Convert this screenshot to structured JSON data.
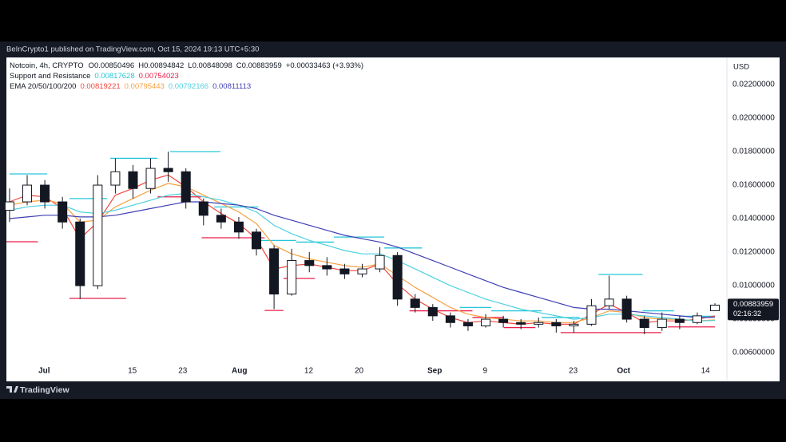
{
  "published": "BeInCrypto1 published on TradingView.com, Oct 15, 2024 19:13 UTC+5:30",
  "footer": "TradingView",
  "chart_data": {
    "type": "candlestick",
    "symbol": "Notcoin, 4h, CRYPTO",
    "ohlc_labels": [
      "O",
      "H",
      "L",
      "C"
    ],
    "change": "+0.00033463 (+3.93%)",
    "currency": "USD",
    "countdown": "02:16:32",
    "up_color": "#ffffff",
    "down_color": "#131722",
    "x": [
      177.5,
      180.3,
      183.1,
      185.9,
      188.7,
      191.5,
      194.3,
      197.1,
      199.9,
      202.7,
      205.5,
      208.3,
      211.1,
      213.9,
      216.7,
      219.5,
      222.3,
      225.1,
      227.9,
      230.7,
      233.5,
      236.3,
      239.1,
      241.9,
      244.7,
      247.5,
      250.3,
      253.1,
      255.9,
      258.7,
      261.5,
      264.3,
      267.1,
      269.9,
      272.7,
      275.5,
      278.3,
      281.1,
      283.9,
      286.7,
      289.5
    ],
    "open": [
      0.0145,
      0.015,
      0.016,
      0.015,
      0.0138,
      0.01,
      0.016,
      0.0168,
      0.0158,
      0.017,
      0.0168,
      0.015,
      0.0142,
      0.0138,
      0.0132,
      0.0122,
      0.0095,
      0.0115,
      0.0112,
      0.011,
      0.0107,
      0.011,
      0.0118,
      0.0092,
      0.0087,
      0.0082,
      0.0078,
      0.0076,
      0.008,
      0.0078,
      0.0077,
      0.0078,
      0.0076,
      0.0077,
      0.0088,
      0.0092,
      0.008,
      0.0075,
      0.008,
      0.0078,
      0.00850496
    ],
    "high": [
      0.0158,
      0.0166,
      0.0163,
      0.0153,
      0.014,
      0.0166,
      0.0176,
      0.0172,
      0.0176,
      0.018,
      0.017,
      0.0152,
      0.0146,
      0.0141,
      0.0134,
      0.0124,
      0.0122,
      0.012,
      0.0117,
      0.0113,
      0.0113,
      0.0123,
      0.012,
      0.0095,
      0.0089,
      0.0084,
      0.008,
      0.0083,
      0.0082,
      0.008,
      0.0081,
      0.008,
      0.0079,
      0.0092,
      0.0106,
      0.0094,
      0.0082,
      0.0084,
      0.0082,
      0.0084,
      0.00894842
    ],
    "low": [
      0.0138,
      0.0148,
      0.0146,
      0.0134,
      0.0092,
      0.0098,
      0.0155,
      0.0152,
      0.0155,
      0.0162,
      0.0146,
      0.0136,
      0.0134,
      0.0128,
      0.0118,
      0.0086,
      0.0094,
      0.0108,
      0.0106,
      0.0104,
      0.0105,
      0.0108,
      0.0088,
      0.0084,
      0.0079,
      0.0075,
      0.0073,
      0.0075,
      0.0075,
      0.0074,
      0.0075,
      0.0072,
      0.0072,
      0.0076,
      0.0086,
      0.0078,
      0.0071,
      0.0073,
      0.0074,
      0.0077,
      0.00848098
    ],
    "close": [
      0.015,
      0.016,
      0.015,
      0.0138,
      0.01,
      0.016,
      0.0168,
      0.0158,
      0.017,
      0.0168,
      0.015,
      0.0142,
      0.0138,
      0.0132,
      0.0122,
      0.0095,
      0.0115,
      0.0112,
      0.011,
      0.0107,
      0.011,
      0.0118,
      0.0092,
      0.0087,
      0.0082,
      0.0078,
      0.0076,
      0.008,
      0.0078,
      0.0077,
      0.0078,
      0.0076,
      0.0077,
      0.0088,
      0.0092,
      0.008,
      0.0075,
      0.008,
      0.0078,
      0.0082,
      0.00883959
    ],
    "sr": {
      "label": "Support and Resistance",
      "resistance": {
        "color": "#26c6da",
        "segments": [
          {
            "x": [
              177.5,
              183.5
            ],
            "value": 0.01667
          },
          {
            "x": [
              187,
              193
            ],
            "value": 0.0152
          },
          {
            "x": [
              193.5,
              201
            ],
            "value": 0.0176
          },
          {
            "x": [
              203,
              211
            ],
            "value": 0.018
          },
          {
            "x": [
              210,
              217
            ],
            "value": 0.0147
          },
          {
            "x": [
              217,
              223
            ],
            "value": 0.0127
          },
          {
            "x": [
              223,
              229
            ],
            "value": 0.0126
          },
          {
            "x": [
              229,
              237
            ],
            "value": 0.0129
          },
          {
            "x": [
              237,
              243
            ],
            "value": 0.01225
          },
          {
            "x": [
              249,
              254
            ],
            "value": 0.0087
          },
          {
            "x": [
              254,
              262
            ],
            "value": 0.0085
          },
          {
            "x": [
              262,
              268
            ],
            "value": 0.0081
          },
          {
            "x": [
              271,
              278
            ],
            "value": 0.01067
          },
          {
            "x": [
              278,
              283
            ],
            "value": 0.0085
          },
          {
            "x": [
              284,
              289.5
            ],
            "value": 0.00817628
          }
        ]
      },
      "support": {
        "color": "#e91e4a",
        "segments": [
          {
            "x": [
              177,
              182
            ],
            "value": 0.01262
          },
          {
            "x": [
              187,
              196
            ],
            "value": 0.00924
          },
          {
            "x": [
              201,
              208
            ],
            "value": 0.0153
          },
          {
            "x": [
              208,
              218
            ],
            "value": 0.01286
          },
          {
            "x": [
              218,
              221
            ],
            "value": 0.00852
          },
          {
            "x": [
              221,
              226
            ],
            "value": 0.01043
          },
          {
            "x": [
              241,
              251
            ],
            "value": 0.0085
          },
          {
            "x": [
              251,
              256
            ],
            "value": 0.0081
          },
          {
            "x": [
              256,
              261
            ],
            "value": 0.0075
          },
          {
            "x": [
              265,
              271
            ],
            "value": 0.0072
          },
          {
            "x": [
              271,
              281
            ],
            "value": 0.0072
          },
          {
            "x": [
              282,
              289.5
            ],
            "value": 0.00754023
          }
        ]
      }
    },
    "ema": {
      "label": "EMA 20/50/100/200",
      "series": [
        {
          "color": "#f0463c",
          "values": [
            0.015,
            0.0154,
            0.0153,
            0.0146,
            0.0128,
            0.0138,
            0.0154,
            0.0158,
            0.0163,
            0.0166,
            0.0159,
            0.015,
            0.0143,
            0.0137,
            0.0128,
            0.011,
            0.0112,
            0.0113,
            0.0111,
            0.0109,
            0.0109,
            0.0113,
            0.0101,
            0.0092,
            0.0086,
            0.0081,
            0.0078,
            0.0079,
            0.0078,
            0.0077,
            0.0078,
            0.0077,
            0.0077,
            0.0083,
            0.0089,
            0.0084,
            0.0078,
            0.0079,
            0.0079,
            0.008,
            0.00819221
          ]
        },
        {
          "color": "#f5a142",
          "values": [
            0.0148,
            0.015,
            0.0151,
            0.0149,
            0.0138,
            0.0139,
            0.0147,
            0.0152,
            0.0157,
            0.0161,
            0.0159,
            0.0154,
            0.0149,
            0.0144,
            0.0137,
            0.0124,
            0.0119,
            0.0116,
            0.0114,
            0.0112,
            0.0111,
            0.0113,
            0.0106,
            0.0099,
            0.0093,
            0.0087,
            0.0083,
            0.0081,
            0.008,
            0.0079,
            0.0079,
            0.0078,
            0.0078,
            0.0081,
            0.0085,
            0.0084,
            0.0081,
            0.008,
            0.008,
            0.0079,
            0.00795443
          ]
        },
        {
          "color": "#4dd0e1",
          "values": [
            0.0145,
            0.0147,
            0.0148,
            0.0148,
            0.0144,
            0.0143,
            0.0145,
            0.0148,
            0.0151,
            0.0154,
            0.0155,
            0.0153,
            0.0151,
            0.0148,
            0.0144,
            0.0136,
            0.0131,
            0.0127,
            0.0124,
            0.0121,
            0.0119,
            0.0119,
            0.0115,
            0.011,
            0.0105,
            0.01,
            0.0096,
            0.0092,
            0.0089,
            0.0086,
            0.0084,
            0.0082,
            0.008,
            0.0081,
            0.0083,
            0.0083,
            0.0082,
            0.0081,
            0.008,
            0.0079,
            0.00792166
          ]
        },
        {
          "color": "#3f3fb5",
          "values": [
            0.014,
            0.0141,
            0.0142,
            0.0142,
            0.0141,
            0.0141,
            0.0142,
            0.0144,
            0.0146,
            0.0148,
            0.015,
            0.015,
            0.0149,
            0.0148,
            0.0146,
            0.0142,
            0.0139,
            0.0136,
            0.0133,
            0.013,
            0.0128,
            0.0126,
            0.0123,
            0.0119,
            0.0115,
            0.0111,
            0.0107,
            0.0103,
            0.0099,
            0.0096,
            0.0093,
            0.009,
            0.0087,
            0.0086,
            0.0086,
            0.0085,
            0.0084,
            0.0083,
            0.0082,
            0.0081,
            0.00811113
          ]
        }
      ]
    },
    "xlim": [
      177,
      291.4
    ],
    "xticks": [
      {
        "value": 183,
        "label": "Jul"
      },
      {
        "value": 197,
        "label": "15"
      },
      {
        "value": 205,
        "label": "23"
      },
      {
        "value": 214,
        "label": "Aug"
      },
      {
        "value": 225,
        "label": "12"
      },
      {
        "value": 233,
        "label": "20"
      },
      {
        "value": 245,
        "label": "Sep"
      },
      {
        "value": 253,
        "label": "9"
      },
      {
        "value": 267,
        "label": "23"
      },
      {
        "value": 275,
        "label": "Oct"
      },
      {
        "value": 288,
        "label": "14"
      }
    ],
    "ylim": [
      0.00467,
      0.02362
    ],
    "yticks": [
      {
        "value": 0.006,
        "label": "0.00600000"
      },
      {
        "value": 0.008,
        "label": "0.00800000"
      },
      {
        "value": 0.01,
        "label": "0.01000000"
      },
      {
        "value": 0.012,
        "label": "0.01200000"
      },
      {
        "value": 0.014,
        "label": "0.01400000"
      },
      {
        "value": 0.016,
        "label": "0.01600000"
      },
      {
        "value": 0.018,
        "label": "0.01800000"
      },
      {
        "value": 0.02,
        "label": "0.02000000"
      },
      {
        "value": 0.022,
        "label": "0.02200000"
      }
    ],
    "grid": false
  }
}
